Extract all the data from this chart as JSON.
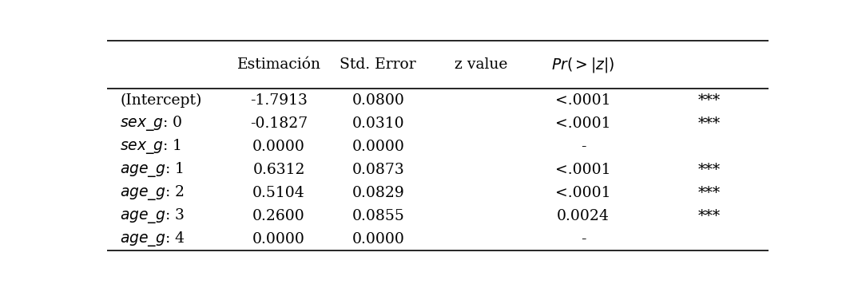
{
  "col_headers": [
    "",
    "Estimación",
    "Std. Error",
    "z value",
    "$Pr(>|z|)$",
    ""
  ],
  "rows": [
    {
      "label": "(Intercept)",
      "italic": false,
      "cols": [
        "-1.7913",
        "0.0800",
        "",
        "<.0001",
        "***"
      ]
    },
    {
      "label": "sex_g: 0",
      "italic": true,
      "cols": [
        "-0.1827",
        "0.0310",
        "",
        "<.0001",
        "***"
      ]
    },
    {
      "label": "sex_g: 1",
      "italic": true,
      "cols": [
        "0.0000",
        "0.0000",
        "",
        "-",
        ""
      ]
    },
    {
      "label": "age_g: 1",
      "italic": true,
      "cols": [
        "0.6312",
        "0.0873",
        "",
        "<.0001",
        "***"
      ]
    },
    {
      "label": "age_g: 2",
      "italic": true,
      "cols": [
        "0.5104",
        "0.0829",
        "",
        "<.0001",
        "***"
      ]
    },
    {
      "label": "age_g: 3",
      "italic": true,
      "cols": [
        "0.2600",
        "0.0855",
        "",
        "0.0024",
        "***"
      ]
    },
    {
      "label": "age_g: 4",
      "italic": true,
      "cols": [
        "0.0000",
        "0.0000",
        "",
        "-",
        ""
      ]
    }
  ],
  "background_color": "#ffffff",
  "text_color": "#000000",
  "fontsize": 13.5,
  "line_color": "#000000",
  "line_width": 1.2
}
